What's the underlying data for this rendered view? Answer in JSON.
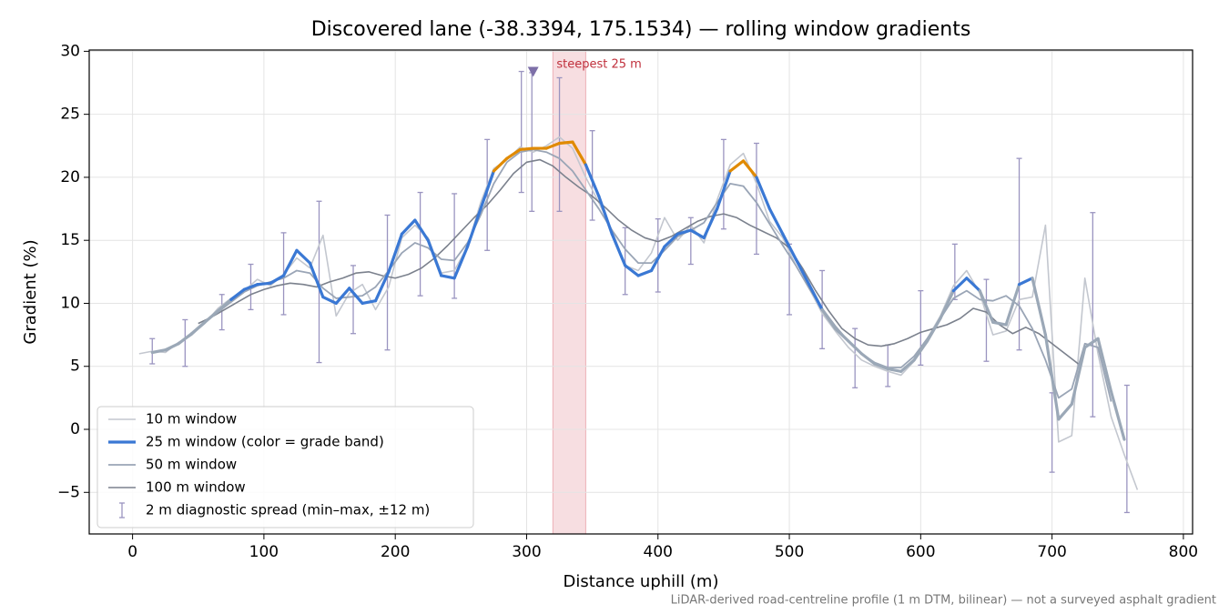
{
  "chart_data": {
    "type": "line",
    "title": "Discovered lane (-38.3394, 175.1534) — rolling window gradients",
    "xlabel": "Distance uphill (m)",
    "ylabel": "Gradient (%)",
    "footnote": "LiDAR-derived road-centreline profile (1 m DTM, bilinear) — not a surveyed asphalt gradient",
    "xlim": [
      -33,
      807
    ],
    "ylim": [
      -8.3,
      30.1
    ],
    "xticks": [
      0,
      100,
      200,
      300,
      400,
      500,
      600,
      700,
      800
    ],
    "yticks": [
      {
        "value": -5,
        "label": "−5"
      },
      0,
      5,
      10,
      15,
      20,
      25,
      30
    ],
    "grid": true,
    "legend": "lower left",
    "series": [
      {
        "name": "10 m window",
        "color": "#c3c7cf",
        "width": 1.6,
        "x": [
          5,
          15,
          25,
          35,
          45,
          55,
          65,
          75,
          85,
          95,
          105,
          115,
          125,
          135,
          145,
          155,
          165,
          175,
          185,
          195,
          205,
          215,
          225,
          235,
          245,
          255,
          265,
          275,
          285,
          295,
          305,
          315,
          325,
          335,
          345,
          355,
          365,
          375,
          385,
          395,
          405,
          415,
          425,
          435,
          445,
          455,
          465,
          475,
          485,
          495,
          505,
          515,
          525,
          535,
          545,
          555,
          565,
          575,
          585,
          595,
          605,
          615,
          625,
          635,
          645,
          655,
          665,
          675,
          685,
          695,
          705,
          715,
          725,
          735,
          745,
          755,
          765
        ],
        "values": [
          6.0,
          6.2,
          6.1,
          6.9,
          7.5,
          8.4,
          9.6,
          10.4,
          11.0,
          11.9,
          11.4,
          12.3,
          13.6,
          12.8,
          15.4,
          9.0,
          10.8,
          11.5,
          9.5,
          11.3,
          15.2,
          16.2,
          15.2,
          12.4,
          12.6,
          14.5,
          18.0,
          20.7,
          21.4,
          22.4,
          22.0,
          22.5,
          23.2,
          22.3,
          20.0,
          18.0,
          15.8,
          13.0,
          12.6,
          14.0,
          16.8,
          15.0,
          16.2,
          14.8,
          18.2,
          21.0,
          21.9,
          19.5,
          16.5,
          15.2,
          13.0,
          11.2,
          9.2,
          7.8,
          6.5,
          5.5,
          5.0,
          4.6,
          4.3,
          5.4,
          7.2,
          9.0,
          11.4,
          12.6,
          10.8,
          7.5,
          7.8,
          10.3,
          10.5,
          16.2,
          -1.0,
          -0.5,
          12.0,
          6.0,
          1.0,
          -2.0,
          -4.8
        ]
      },
      {
        "name": "25 m window (color = grade band)",
        "color": "#3a78d4",
        "width": 3.2,
        "band_colors": [
          "#9ba8b7",
          "#3a78d4",
          "#e08a00"
        ],
        "band_edges": [
          10,
          20
        ],
        "x": [
          15,
          25,
          35,
          45,
          55,
          65,
          75,
          85,
          95,
          105,
          115,
          125,
          135,
          145,
          155,
          165,
          175,
          185,
          195,
          205,
          215,
          225,
          235,
          245,
          255,
          265,
          275,
          285,
          295,
          305,
          315,
          325,
          335,
          345,
          355,
          365,
          375,
          385,
          395,
          405,
          415,
          425,
          435,
          445,
          455,
          465,
          475,
          485,
          495,
          505,
          515,
          525,
          535,
          545,
          555,
          565,
          575,
          585,
          595,
          605,
          615,
          625,
          635,
          645,
          655,
          665,
          675,
          685,
          695,
          705,
          715,
          725,
          735,
          745,
          755
        ],
        "values": [
          6.1,
          6.3,
          6.8,
          7.6,
          8.5,
          9.4,
          10.3,
          11.1,
          11.5,
          11.6,
          12.2,
          14.2,
          13.2,
          10.5,
          10.0,
          11.2,
          10.0,
          10.2,
          12.5,
          15.5,
          16.6,
          15.0,
          12.2,
          12.0,
          14.5,
          17.5,
          20.5,
          21.5,
          22.2,
          22.3,
          22.3,
          22.7,
          22.8,
          21.0,
          18.5,
          15.5,
          13.0,
          12.2,
          12.6,
          14.5,
          15.5,
          15.8,
          15.2,
          17.5,
          20.5,
          21.3,
          20.0,
          17.5,
          15.5,
          13.5,
          11.5,
          9.5,
          8.0,
          7.0,
          6.0,
          5.2,
          4.8,
          4.6,
          5.5,
          7.0,
          8.8,
          11.0,
          12.0,
          11.0,
          8.5,
          8.3,
          11.5,
          12.0,
          7.5,
          0.8,
          2.0,
          6.5,
          7.2,
          3.0,
          -0.8
        ]
      },
      {
        "name": "50 m window",
        "color": "#9aa5b6",
        "width": 1.8,
        "x": [
          25,
          35,
          45,
          55,
          65,
          75,
          85,
          95,
          105,
          115,
          125,
          135,
          145,
          155,
          165,
          175,
          185,
          195,
          205,
          215,
          225,
          235,
          245,
          255,
          265,
          275,
          285,
          295,
          305,
          315,
          325,
          335,
          345,
          355,
          365,
          375,
          385,
          395,
          405,
          415,
          425,
          435,
          445,
          455,
          465,
          475,
          485,
          495,
          505,
          515,
          525,
          535,
          545,
          555,
          565,
          575,
          585,
          595,
          605,
          615,
          625,
          635,
          645,
          655,
          665,
          675,
          685,
          695,
          705,
          715,
          725,
          735,
          745
        ],
        "values": [
          6.2,
          6.8,
          7.5,
          8.5,
          9.3,
          10.1,
          10.9,
          11.4,
          11.7,
          12.0,
          12.6,
          12.4,
          11.2,
          10.4,
          10.5,
          10.6,
          11.3,
          12.6,
          14.0,
          14.8,
          14.4,
          13.5,
          13.4,
          14.8,
          17.0,
          19.5,
          21.2,
          22.0,
          22.2,
          22.0,
          21.5,
          20.5,
          19.0,
          17.5,
          15.8,
          14.3,
          13.2,
          13.2,
          14.2,
          15.3,
          15.8,
          16.4,
          18.0,
          19.5,
          19.3,
          18.0,
          16.3,
          14.6,
          13.0,
          11.2,
          9.6,
          8.2,
          7.0,
          6.0,
          5.3,
          4.9,
          4.9,
          5.8,
          7.2,
          8.8,
          10.4,
          11.0,
          10.3,
          10.2,
          10.6,
          9.8,
          8.0,
          5.5,
          2.5,
          3.2,
          6.8,
          6.5,
          2.2
        ]
      },
      {
        "name": "100 m window",
        "color": "#7b818d",
        "width": 1.6,
        "x": [
          50,
          60,
          70,
          80,
          90,
          100,
          110,
          120,
          130,
          140,
          150,
          160,
          170,
          180,
          190,
          200,
          210,
          220,
          230,
          240,
          250,
          260,
          270,
          280,
          290,
          300,
          310,
          320,
          330,
          340,
          350,
          360,
          370,
          380,
          390,
          400,
          410,
          420,
          430,
          440,
          450,
          460,
          470,
          480,
          490,
          500,
          510,
          520,
          530,
          540,
          550,
          560,
          570,
          580,
          590,
          600,
          610,
          620,
          630,
          640,
          650,
          660,
          670,
          680,
          690,
          700,
          710,
          720
        ],
        "values": [
          8.4,
          8.9,
          9.5,
          10.1,
          10.7,
          11.1,
          11.4,
          11.6,
          11.5,
          11.3,
          11.7,
          12.0,
          12.4,
          12.5,
          12.2,
          12.0,
          12.3,
          12.8,
          13.6,
          14.6,
          15.7,
          16.8,
          17.8,
          19.0,
          20.3,
          21.2,
          21.4,
          20.9,
          20.0,
          19.2,
          18.5,
          17.6,
          16.6,
          15.8,
          15.2,
          14.9,
          15.3,
          15.9,
          16.5,
          16.9,
          17.1,
          16.8,
          16.2,
          15.7,
          15.2,
          14.4,
          12.8,
          11.0,
          9.4,
          8.0,
          7.2,
          6.7,
          6.6,
          6.8,
          7.2,
          7.7,
          8.0,
          8.3,
          8.8,
          9.6,
          9.3,
          8.3,
          7.6,
          8.1,
          7.6,
          6.8,
          6.0,
          5.2
        ]
      }
    ],
    "error_bars": {
      "name": "2 m diagnostic spread (min–max, ±12 m)",
      "color": "#9a94c0",
      "x": [
        15,
        40,
        68,
        90,
        115,
        142,
        168,
        194,
        219,
        245,
        270,
        296,
        304,
        325,
        350,
        375,
        400,
        425,
        450,
        475,
        500,
        525,
        550,
        575,
        600,
        626,
        650,
        675,
        700,
        731,
        757
      ],
      "low": [
        5.2,
        5.0,
        7.9,
        9.5,
        9.1,
        5.3,
        7.6,
        6.3,
        10.6,
        10.4,
        14.2,
        18.8,
        17.3,
        17.3,
        16.6,
        10.7,
        10.9,
        13.1,
        15.9,
        13.9,
        9.1,
        6.4,
        3.3,
        3.4,
        5.1,
        10.3,
        5.4,
        6.3,
        -3.4,
        1.0,
        -6.6
      ],
      "high": [
        7.2,
        8.7,
        10.7,
        13.1,
        15.6,
        18.1,
        13.0,
        17.0,
        18.8,
        18.7,
        23.0,
        28.4,
        28.3,
        27.9,
        23.7,
        16.0,
        16.7,
        16.8,
        23.0,
        22.7,
        14.7,
        12.6,
        8.0,
        6.7,
        11.0,
        14.7,
        11.9,
        21.5,
        2.9,
        17.2,
        3.5
      ]
    },
    "highlight": {
      "label": "steepest 25 m",
      "xrange": [
        320,
        345
      ],
      "color": "#e8a0a8"
    },
    "peak_marker": {
      "x": 305,
      "y": 28.4,
      "color": "#7d6fa8"
    }
  }
}
